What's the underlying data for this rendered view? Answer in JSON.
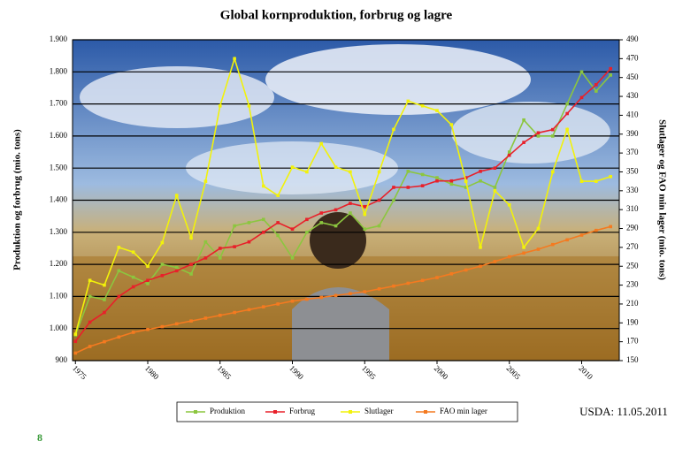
{
  "chart_data": {
    "type": "line",
    "title": "Global kornproduktion, forbrug og lagre",
    "y_label": "Produktion og forbrug (mio. tons)",
    "y2_label": "Slutlager og FAO min lager (mio. tons)",
    "annotation": "USDA: 11.05.2011",
    "page_number": "8",
    "x": [
      1975,
      1976,
      1977,
      1978,
      1979,
      1980,
      1981,
      1982,
      1983,
      1984,
      1985,
      1986,
      1987,
      1988,
      1989,
      1990,
      1991,
      1992,
      1993,
      1994,
      1995,
      1996,
      1997,
      1998,
      1999,
      2000,
      2001,
      2002,
      2003,
      2004,
      2005,
      2006,
      2007,
      2008,
      2009,
      2010,
      2011,
      2012
    ],
    "xlim": [
      1974.8,
      2012.6
    ],
    "xticks": [
      1975,
      1980,
      1985,
      1990,
      1995,
      2000,
      2005,
      2010
    ],
    "ylim": [
      900,
      1900
    ],
    "yticks": [
      900,
      {
        "value": 1000,
        "label": "1.000"
      },
      {
        "value": 1100,
        "label": "1.100"
      },
      {
        "value": 1200,
        "label": "1.200"
      },
      {
        "value": 1300,
        "label": "1.300"
      },
      {
        "value": 1400,
        "label": "1.400"
      },
      {
        "value": 1500,
        "label": "1.500"
      },
      {
        "value": 1600,
        "label": "1.600"
      },
      {
        "value": 1700,
        "label": "1.700"
      },
      {
        "value": 1800,
        "label": "1.800"
      },
      {
        "value": 1900,
        "label": "1.900"
      }
    ],
    "y2lim": [
      150,
      490
    ],
    "y2ticks": [
      150,
      170,
      190,
      210,
      230,
      250,
      270,
      290,
      310,
      330,
      350,
      370,
      390,
      410,
      430,
      450,
      470,
      490
    ],
    "grid": true,
    "legend": "bottom",
    "series": [
      {
        "name": "Produktion",
        "color": "#8cc63f",
        "values": [
          980,
          1100,
          1090,
          1180,
          1160,
          1140,
          1200,
          1190,
          1170,
          1270,
          1220,
          1320,
          1330,
          1340,
          1290,
          1220,
          1300,
          1330,
          1320,
          1360,
          1310,
          1320,
          1400,
          1490,
          1480,
          1470,
          1450,
          1440,
          1460,
          1440,
          1550,
          1650,
          1600,
          1600,
          1700,
          1800,
          1740,
          1790
        ]
      },
      {
        "name": "Forbrug",
        "color": "#e8202a",
        "values": [
          960,
          1020,
          1050,
          1100,
          1130,
          1150,
          1165,
          1180,
          1200,
          1220,
          1250,
          1255,
          1270,
          1300,
          1330,
          1310,
          1340,
          1360,
          1370,
          1390,
          1380,
          1400,
          1440,
          1440,
          1445,
          1460,
          1460,
          1470,
          1490,
          1500,
          1540,
          1580,
          1610,
          1620,
          1670,
          1720,
          1760,
          1810
        ]
      },
      {
        "name": "Slutlager",
        "color": "#f2f20a",
        "axis": "y2",
        "values": [
          178,
          235,
          230,
          270,
          265,
          250,
          275,
          325,
          280,
          340,
          420,
          470,
          420,
          335,
          325,
          355,
          350,
          380,
          355,
          350,
          305,
          350,
          395,
          425,
          420,
          415,
          400,
          340,
          270,
          330,
          315,
          270,
          290,
          350,
          395,
          340,
          340,
          345
        ]
      },
      {
        "name": "FAO min lager",
        "color": "#f47a20",
        "axis": "y2",
        "values": [
          158,
          165,
          170,
          175,
          180,
          183,
          186,
          189,
          192,
          195,
          198,
          201,
          204,
          207,
          210,
          213,
          215,
          217,
          219,
          221,
          223,
          226,
          229,
          232,
          235,
          238,
          242,
          246,
          250,
          255,
          260,
          264,
          268,
          273,
          278,
          283,
          288,
          292
        ]
      }
    ]
  }
}
